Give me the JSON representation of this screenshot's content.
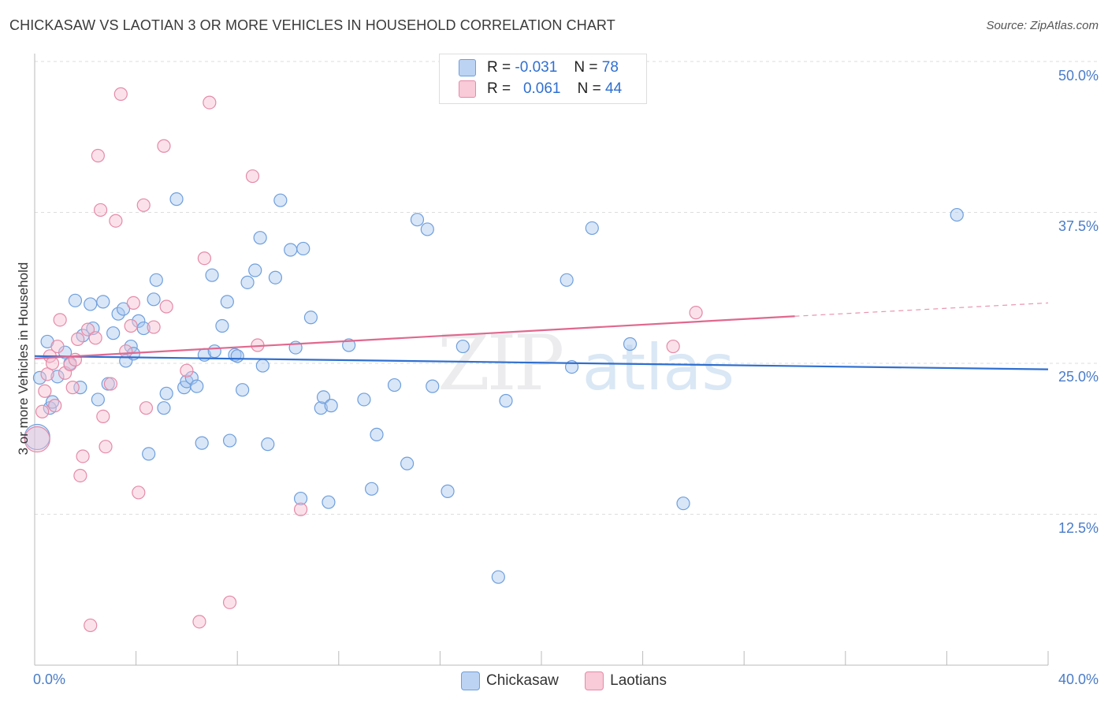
{
  "title": "CHICKASAW VS LAOTIAN 3 OR MORE VEHICLES IN HOUSEHOLD CORRELATION CHART",
  "source": "Source: ZipAtlas.com",
  "watermark": {
    "zip": "ZIP",
    "atlas": "atlas"
  },
  "legend": {
    "rows": [
      {
        "r_label": "R =",
        "r_value": "-0.031",
        "n_label": "N =",
        "n_value": "78"
      },
      {
        "r_label": "R =",
        "r_value": "0.061",
        "n_label": "N =",
        "n_value": "44"
      }
    ]
  },
  "bottom_legend": [
    "Chickasaw",
    "Laotians"
  ],
  "colors": {
    "chickasaw_fill": "#a9c7ef",
    "chickasaw_stroke": "#6f9fdc",
    "chickasaw_line": "#2f6fd0",
    "laotian_fill": "#f6bfd0",
    "laotian_stroke": "#e58aa8",
    "laotian_line": "#e0688f",
    "tick_label": "#4a7cc7",
    "grid": "#dddddd"
  },
  "chart_data": {
    "type": "scatter",
    "title": "CHICKASAW VS LAOTIAN 3 OR MORE VEHICLES IN HOUSEHOLD CORRELATION CHART",
    "xlabel": "",
    "ylabel": "3 or more Vehicles in Household",
    "xlim": [
      0,
      40
    ],
    "ylim": [
      0,
      52.5
    ],
    "x_tick_labels": [
      "0.0%",
      "40.0%"
    ],
    "y_ticks": [
      12.5,
      25.0,
      37.5,
      50.0
    ],
    "y_tick_labels": [
      "12.5%",
      "25.0%",
      "37.5%",
      "50.0%"
    ],
    "grid": "horizontal dashed",
    "legend_placement": "top-center",
    "series": [
      {
        "name": "Chickasaw",
        "trend": {
          "x0": 0,
          "y0": 25.6,
          "x1": 40,
          "y1": 24.5
        },
        "points": [
          [
            0.2,
            23.8
          ],
          [
            0.5,
            26.8
          ],
          [
            0.6,
            21.3
          ],
          [
            0.7,
            21.8
          ],
          [
            0.9,
            23.9
          ],
          [
            1.2,
            25.9
          ],
          [
            1.4,
            25.0
          ],
          [
            1.6,
            30.2
          ],
          [
            1.8,
            23.0
          ],
          [
            1.9,
            27.3
          ],
          [
            2.2,
            29.9
          ],
          [
            2.3,
            27.9
          ],
          [
            2.5,
            22.0
          ],
          [
            2.7,
            30.1
          ],
          [
            2.9,
            23.3
          ],
          [
            3.1,
            27.5
          ],
          [
            3.3,
            29.1
          ],
          [
            3.5,
            29.5
          ],
          [
            3.6,
            25.2
          ],
          [
            3.8,
            26.4
          ],
          [
            3.9,
            25.8
          ],
          [
            4.1,
            28.5
          ],
          [
            4.3,
            27.9
          ],
          [
            4.5,
            17.5
          ],
          [
            4.7,
            30.3
          ],
          [
            4.8,
            31.9
          ],
          [
            5.1,
            21.3
          ],
          [
            5.2,
            22.5
          ],
          [
            5.6,
            38.6
          ],
          [
            5.9,
            23.0
          ],
          [
            6.0,
            23.5
          ],
          [
            6.2,
            23.8
          ],
          [
            6.4,
            23.1
          ],
          [
            6.6,
            18.4
          ],
          [
            6.7,
            25.7
          ],
          [
            7.0,
            32.3
          ],
          [
            7.1,
            26.0
          ],
          [
            7.4,
            28.1
          ],
          [
            7.6,
            30.1
          ],
          [
            7.7,
            18.6
          ],
          [
            7.9,
            25.7
          ],
          [
            8.0,
            25.6
          ],
          [
            8.2,
            22.8
          ],
          [
            8.4,
            31.7
          ],
          [
            8.7,
            32.7
          ],
          [
            8.9,
            35.4
          ],
          [
            9.0,
            24.8
          ],
          [
            9.2,
            18.3
          ],
          [
            9.5,
            32.1
          ],
          [
            9.7,
            38.5
          ],
          [
            10.1,
            34.4
          ],
          [
            10.3,
            26.3
          ],
          [
            10.5,
            13.8
          ],
          [
            10.6,
            34.5
          ],
          [
            10.9,
            28.8
          ],
          [
            11.3,
            21.3
          ],
          [
            11.4,
            22.2
          ],
          [
            11.6,
            13.5
          ],
          [
            11.7,
            21.5
          ],
          [
            12.4,
            26.5
          ],
          [
            13.0,
            22.0
          ],
          [
            13.3,
            14.6
          ],
          [
            13.5,
            19.1
          ],
          [
            14.2,
            23.2
          ],
          [
            14.7,
            16.7
          ],
          [
            15.1,
            36.9
          ],
          [
            15.5,
            36.1
          ],
          [
            15.7,
            23.1
          ],
          [
            16.3,
            14.4
          ],
          [
            16.9,
            26.4
          ],
          [
            18.3,
            7.3
          ],
          [
            18.6,
            21.9
          ],
          [
            21.0,
            31.9
          ],
          [
            21.2,
            24.7
          ],
          [
            22.0,
            36.2
          ],
          [
            23.5,
            26.6
          ],
          [
            25.6,
            13.4
          ],
          [
            36.4,
            37.3
          ]
        ],
        "large_point": [
          0.1,
          18.9
        ]
      },
      {
        "name": "Laotians",
        "trend": {
          "x0": 0,
          "y0": 25.4,
          "x1": 30,
          "y1": 28.9,
          "dashed_to": {
            "x": 40,
            "y": 30.0
          }
        },
        "points": [
          [
            0.3,
            21.0
          ],
          [
            0.4,
            22.7
          ],
          [
            0.5,
            24.1
          ],
          [
            0.6,
            25.6
          ],
          [
            0.8,
            21.5
          ],
          [
            0.9,
            26.4
          ],
          [
            1.0,
            28.6
          ],
          [
            1.2,
            24.2
          ],
          [
            1.4,
            24.9
          ],
          [
            1.5,
            23.0
          ],
          [
            1.6,
            25.3
          ],
          [
            1.7,
            27.0
          ],
          [
            1.8,
            15.7
          ],
          [
            1.9,
            17.3
          ],
          [
            2.1,
            27.8
          ],
          [
            2.2,
            3.3
          ],
          [
            2.4,
            27.1
          ],
          [
            2.5,
            42.2
          ],
          [
            2.6,
            37.7
          ],
          [
            2.7,
            20.6
          ],
          [
            2.8,
            18.1
          ],
          [
            3.0,
            23.3
          ],
          [
            3.2,
            36.8
          ],
          [
            3.4,
            47.3
          ],
          [
            3.6,
            26.0
          ],
          [
            3.8,
            28.1
          ],
          [
            3.9,
            30.0
          ],
          [
            4.1,
            14.3
          ],
          [
            4.3,
            38.1
          ],
          [
            4.4,
            21.3
          ],
          [
            4.7,
            28.0
          ],
          [
            5.1,
            43.0
          ],
          [
            5.2,
            29.7
          ],
          [
            6.0,
            24.4
          ],
          [
            6.5,
            3.6
          ],
          [
            6.7,
            33.7
          ],
          [
            6.9,
            46.6
          ],
          [
            7.7,
            5.2
          ],
          [
            8.8,
            26.5
          ],
          [
            8.6,
            40.5
          ],
          [
            10.5,
            12.9
          ],
          [
            25.2,
            26.4
          ],
          [
            26.1,
            29.2
          ],
          [
            0.7,
            25.0
          ]
        ],
        "large_point": [
          0.1,
          18.7
        ]
      }
    ]
  }
}
